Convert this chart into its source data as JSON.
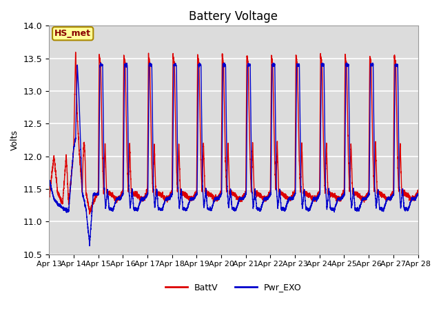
{
  "title": "Battery Voltage",
  "ylabel": "Volts",
  "ylim": [
    10.5,
    14.0
  ],
  "background_color": "#ffffff",
  "plot_bg_color": "#dcdcdc",
  "grid_color": "#ffffff",
  "annotation_text": "HS_met",
  "annotation_bg": "#ffff99",
  "annotation_border": "#aa8800",
  "annotation_text_color": "#880000",
  "line_red": "#dd0000",
  "line_blue": "#0000cc",
  "legend_labels": [
    "BattV",
    "Pwr_EXO"
  ],
  "tick_labels": [
    "Apr 13",
    "Apr 14",
    "Apr 15",
    "Apr 16",
    "Apr 17",
    "Apr 18",
    "Apr 19",
    "Apr 20",
    "Apr 21",
    "Apr 22",
    "Apr 23",
    "Apr 24",
    "Apr 25",
    "Apr 26",
    "Apr 27",
    "Apr 28"
  ],
  "title_fontsize": 12,
  "axis_fontsize": 9,
  "tick_fontsize": 8,
  "legend_fontsize": 9
}
